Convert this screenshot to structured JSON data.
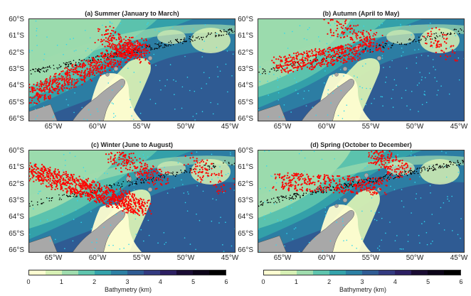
{
  "panels": [
    {
      "title": "(a) Summer (January to March)"
    },
    {
      "title": "(b) Autumn (April to May)"
    },
    {
      "title": "(c) Winter (June to August)"
    },
    {
      "title": "(d) Spring (October to December)"
    }
  ],
  "axes": {
    "lat_labels": [
      "60°S",
      "61°S",
      "62°S",
      "63°S",
      "64°S",
      "65°S",
      "66°S"
    ],
    "lon_labels": [
      "65°W",
      "60°W",
      "55°W",
      "50°W",
      "45°W"
    ]
  },
  "colorbar": {
    "label": "Bathymetry (km)",
    "ticks": [
      "0",
      "1",
      "2",
      "3",
      "4",
      "5",
      "6"
    ],
    "colors": [
      "#fdfdd0",
      "#d7f0b4",
      "#9fdcad",
      "#5ec4ad",
      "#34a2aa",
      "#2c7fa3",
      "#2f5b93",
      "#333a80",
      "#2c1f62",
      "#1a0c33",
      "#0c0418",
      "#000000"
    ]
  },
  "legend_colors": {
    "land": "#a8a8a8",
    "observations_red": "#ff0000",
    "observations_cyan": "#2fd8f0",
    "observations_black": "#000000"
  }
}
